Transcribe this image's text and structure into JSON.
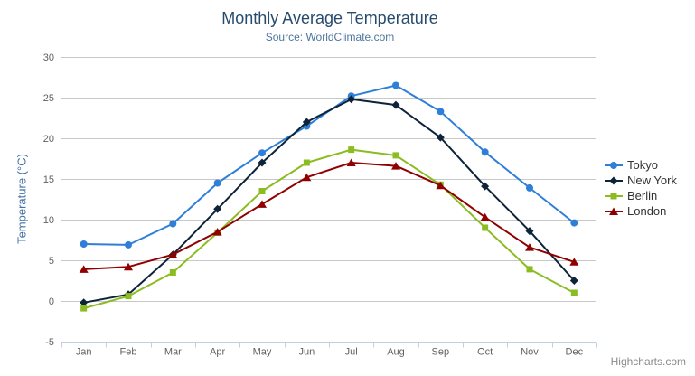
{
  "chart": {
    "credit": "Highcharts.com",
    "export_menu_icon": "hamburger-icon"
  },
  "colors": {
    "title": "#274b6d",
    "subtitle": "#4d759e",
    "axis_title": "#4572a7",
    "axis_labels": "#606060",
    "gridline": "#c8c8c8",
    "axis_line": "#c0d0e0",
    "legend_text": "#333333",
    "credit": "#8a8a8a",
    "background": "#ffffff"
  },
  "chart_data": {
    "type": "line",
    "title": "Monthly Average Temperature",
    "subtitle": "Source: WorldClimate.com",
    "categories": [
      "Jan",
      "Feb",
      "Mar",
      "Apr",
      "May",
      "Jun",
      "Jul",
      "Aug",
      "Sep",
      "Oct",
      "Nov",
      "Dec"
    ],
    "xlabel": "",
    "ylabel": "Temperature (°C)",
    "ylim": [
      -5,
      30
    ],
    "yticks": [
      -5,
      0,
      5,
      10,
      15,
      20,
      25,
      30
    ],
    "grid": true,
    "legend_position": "right",
    "series": [
      {
        "name": "Tokyo",
        "color": "#2f7ed8",
        "marker": "circle",
        "values": [
          7.0,
          6.9,
          9.5,
          14.5,
          18.2,
          21.5,
          25.2,
          26.5,
          23.3,
          18.3,
          13.9,
          9.6
        ]
      },
      {
        "name": "New York",
        "color": "#0d233a",
        "marker": "diamond",
        "values": [
          -0.2,
          0.8,
          5.7,
          11.3,
          17.0,
          22.0,
          24.8,
          24.1,
          20.1,
          14.1,
          8.6,
          2.5
        ]
      },
      {
        "name": "Berlin",
        "color": "#8bbc21",
        "marker": "square",
        "values": [
          -0.9,
          0.6,
          3.5,
          8.4,
          13.5,
          17.0,
          18.6,
          17.9,
          14.3,
          9.0,
          3.9,
          1.0
        ]
      },
      {
        "name": "London",
        "color": "#910000",
        "marker": "triangle-up",
        "values": [
          3.9,
          4.2,
          5.7,
          8.5,
          11.9,
          15.2,
          17.0,
          16.6,
          14.2,
          10.3,
          6.6,
          4.8
        ]
      }
    ]
  }
}
